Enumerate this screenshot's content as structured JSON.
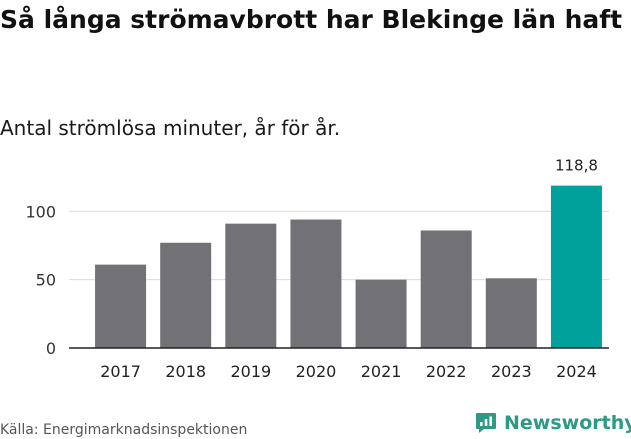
{
  "title": "Så långa strömavbrott har Blekinge län haft",
  "subtitle": "Antal strömlösa minuter, år för år.",
  "source": "Källa: Energimarknadsinspektionen",
  "brand": "Newsworthy",
  "colors": {
    "bar": "#727175",
    "highlight": "#00a19a",
    "brand": "#2e9a84",
    "grid": "#dcdcdc",
    "axis": "#222222"
  },
  "chart_data": {
    "type": "bar",
    "categories": [
      "2017",
      "2018",
      "2019",
      "2020",
      "2021",
      "2022",
      "2023",
      "2024"
    ],
    "values": [
      61,
      77,
      91,
      94,
      50,
      86,
      51,
      118.8
    ],
    "highlight_index": 7,
    "value_labels": {
      "7": "118,8"
    },
    "yticks": [
      0,
      50,
      100
    ],
    "ylim": [
      0,
      120
    ],
    "grid": true,
    "legend": false
  }
}
